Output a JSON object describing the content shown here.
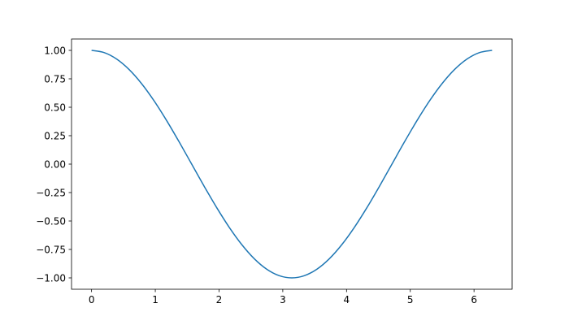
{
  "chart_data": {
    "type": "line",
    "title": "",
    "xlabel": "",
    "ylabel": "",
    "xlim": [
      -0.31416,
      6.59734
    ],
    "ylim": [
      -1.1,
      1.1
    ],
    "grid": false,
    "x_ticks": [
      0,
      1,
      2,
      3,
      4,
      5,
      6
    ],
    "x_tick_labels": [
      "0",
      "1",
      "2",
      "3",
      "4",
      "5",
      "6"
    ],
    "y_ticks": [
      1.0,
      0.75,
      0.5,
      0.25,
      0.0,
      -0.25,
      -0.5,
      -0.75,
      -1.0
    ],
    "y_tick_labels": [
      "1.00",
      "0.75",
      "0.50",
      "0.25",
      "0.00",
      "−0.25",
      "−0.50",
      "−0.75",
      "−1.00"
    ],
    "series": [
      {
        "color": "#1f77b4",
        "x": [
          0,
          0.1963,
          0.3927,
          0.589,
          0.7854,
          0.9817,
          1.1781,
          1.3744,
          1.5708,
          1.7671,
          1.9635,
          2.1598,
          2.3562,
          2.5525,
          2.7489,
          2.9452,
          3.1416,
          3.3379,
          3.5343,
          3.7306,
          3.927,
          4.1233,
          4.3197,
          4.516,
          4.7124,
          4.9087,
          5.1051,
          5.3014,
          5.4978,
          5.6941,
          5.8905,
          6.0868,
          6.2832
        ],
        "y": [
          1,
          0.9808,
          0.9239,
          0.8315,
          0.7071,
          0.5556,
          0.3827,
          0.1951,
          0,
          -0.1951,
          -0.3827,
          -0.5556,
          -0.7071,
          -0.8315,
          -0.9239,
          -0.9808,
          -1,
          -0.9808,
          -0.9239,
          -0.8315,
          -0.7071,
          -0.5556,
          -0.3827,
          -0.1951,
          0,
          0.1951,
          0.3827,
          0.5556,
          0.7071,
          0.8315,
          0.9239,
          0.9808,
          1
        ]
      }
    ]
  }
}
